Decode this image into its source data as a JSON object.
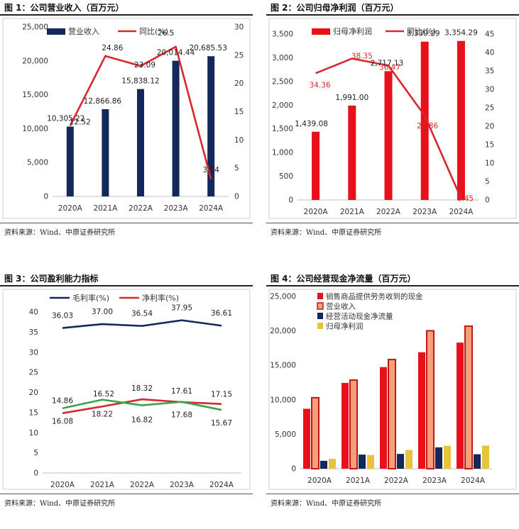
{
  "panels": [
    {
      "title": "图 1：公司营业收入（百万元）",
      "source": "资料来源：Wind、中原证券研究所"
    },
    {
      "title": "图 2：公司归母净利润（百万元）",
      "source": "资料来源：Wind、中原证券研究所"
    },
    {
      "title": "图 3：公司盈利能力指标",
      "source": "资料来源：Wind、中原证券研究所"
    },
    {
      "title": "图 4：公司经营现金净流量（百万元）",
      "source": "资料来源：Wind、中原证券研究所"
    }
  ],
  "chart_data": [
    {
      "type": "bar",
      "categories": [
        "2020A",
        "2021A",
        "2022A",
        "2023A",
        "2024A"
      ],
      "series": [
        {
          "name": "营业收入",
          "axis": "left",
          "kind": "bar",
          "color": "#14285a",
          "values": [
            10305.22,
            12866.86,
            15838.12,
            20014.44,
            20685.53
          ],
          "labels": [
            "10,305.22",
            "12,866.86",
            "15,838.12",
            "20,014.44",
            "20,685.53"
          ]
        },
        {
          "name": "同比(%)",
          "axis": "right",
          "kind": "line",
          "color": "#d9272e",
          "values": [
            12.52,
            24.86,
            23.09,
            26.5,
            3.04
          ],
          "labels": [
            "12.52",
            "24.86",
            "23.09",
            "26.5",
            "3.04"
          ]
        }
      ],
      "ylim": [
        0,
        25000
      ],
      "yticks": [
        0,
        5000,
        10000,
        15000,
        20000,
        25000
      ],
      "ytick_labels": [
        "0",
        "5,000",
        "10,000",
        "15,000",
        "20,000",
        "25,000"
      ],
      "y2lim": [
        0,
        30
      ],
      "y2ticks": [
        0,
        5,
        10,
        15,
        20,
        25,
        30
      ],
      "y2tick_labels": [
        "0",
        "5",
        "10",
        "15",
        "20",
        "25",
        "30"
      ],
      "legend": "top-left",
      "grid": false
    },
    {
      "type": "bar",
      "categories": [
        "2020A",
        "2021A",
        "2022A",
        "2023A",
        "2024A"
      ],
      "series": [
        {
          "name": "归母净利润",
          "axis": "left",
          "kind": "bar",
          "color": "#e8101b",
          "values": [
            1439.08,
            1991.0,
            2717.13,
            3339.29,
            3354.29
          ],
          "labels": [
            "1,439.08",
            "1,991.00",
            "2,717.13",
            "3,339.29",
            "3,354.29"
          ]
        },
        {
          "name": "同比(%)",
          "axis": "right",
          "kind": "line",
          "color": "#d9272e",
          "values": [
            34.36,
            38.35,
            36.47,
            22.86,
            0.45
          ],
          "labels": [
            "34.36",
            "38.35",
            "36.47",
            "22.86",
            "0.45"
          ]
        }
      ],
      "ylim": [
        0,
        3500
      ],
      "yticks": [
        0,
        500,
        1000,
        1500,
        2000,
        2500,
        3000,
        3500
      ],
      "ytick_labels": [
        "0",
        "500",
        "1,000",
        "1,500",
        "2,000",
        "2,500",
        "3,000",
        "3,500"
      ],
      "y2lim": [
        0,
        45
      ],
      "y2ticks": [
        0,
        5,
        10,
        15,
        20,
        25,
        30,
        35,
        40,
        45
      ],
      "y2tick_labels": [
        "0",
        "5",
        "10",
        "15",
        "20",
        "25",
        "30",
        "35",
        "40",
        "45"
      ],
      "legend": "top",
      "grid": false
    },
    {
      "type": "line",
      "categories": [
        "2020A",
        "2021A",
        "2022A",
        "2023A",
        "2024A"
      ],
      "series": [
        {
          "name": "毛利率(%)",
          "color": "#14285a",
          "values": [
            36.03,
            37.0,
            36.54,
            37.95,
            36.61
          ],
          "labels": [
            "36.03",
            "37.00",
            "36.54",
            "37.95",
            "36.61"
          ]
        },
        {
          "name": "净利率(%)",
          "color": "#d9272e",
          "values": [
            14.86,
            16.52,
            18.32,
            17.61,
            17.15
          ],
          "labels": [
            "14.86",
            "16.52",
            "18.32",
            "17.61",
            "17.15"
          ]
        },
        {
          "name": "",
          "color": "#3aa24a",
          "values": [
            16.08,
            18.22,
            16.82,
            17.68,
            15.67
          ],
          "labels": [
            "16.08",
            "18.22",
            "16.82",
            "17.68",
            "15.67"
          ]
        }
      ],
      "ylim": [
        0,
        40
      ],
      "yticks": [
        0,
        5,
        10,
        15,
        20,
        25,
        30,
        35,
        40
      ],
      "ytick_labels": [
        "0",
        "5",
        "10",
        "15",
        "20",
        "25",
        "30",
        "35",
        "40"
      ],
      "legend": "top",
      "grid": false
    },
    {
      "type": "bar",
      "categories": [
        "2020A",
        "2021A",
        "2022A",
        "2023A",
        "2024A"
      ],
      "series": [
        {
          "name": "销售商品提供劳务收到的现金",
          "color": "#e8101b",
          "values": [
            8700,
            12450,
            14750,
            16900,
            18300
          ]
        },
        {
          "name": "营业收入",
          "color": "#f4a07a",
          "border": "#c0180f",
          "values": [
            10305.22,
            12866.86,
            15838.12,
            20014.44,
            20685.53
          ]
        },
        {
          "name": "经营活动现金净流量",
          "color": "#14285a",
          "values": [
            1150,
            2050,
            2150,
            3100,
            2100
          ]
        },
        {
          "name": "归母净利润",
          "color": "#e9c33b",
          "values": [
            1439.08,
            1991.0,
            2717.13,
            3339.29,
            3354.29
          ]
        }
      ],
      "ylim": [
        0,
        25000
      ],
      "yticks": [
        0,
        5000,
        10000,
        15000,
        20000,
        25000
      ],
      "ytick_labels": [
        "0",
        "5,000",
        "10,000",
        "15,000",
        "20,000",
        "25,000"
      ],
      "legend": "top-left",
      "grid": false
    }
  ]
}
